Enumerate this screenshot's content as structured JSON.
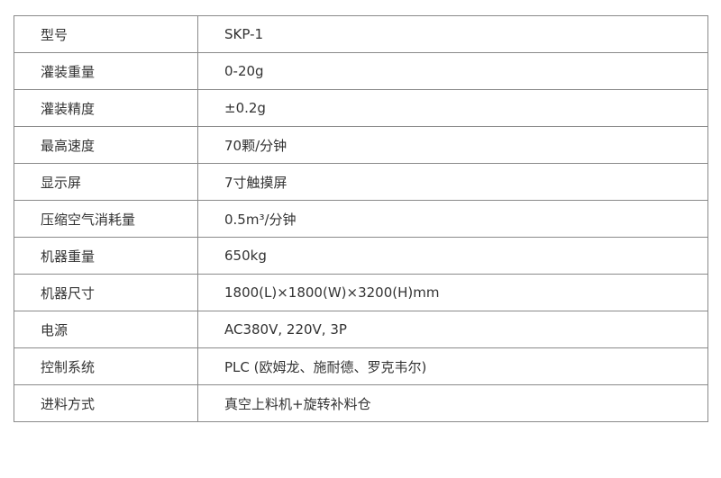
{
  "rows": [
    {
      "label": "型号",
      "value": "SKP-1"
    },
    {
      "label": "灌装重量",
      "value": "0-20g"
    },
    {
      "label": "灌装精度",
      "value": "±0.2g"
    },
    {
      "label": "最高速度",
      "value": "70颗/分钟"
    },
    {
      "label": "显示屏",
      "value": "7寸触摸屏"
    },
    {
      "label": "压缩空气消耗量",
      "value": "0.5m³/分钟"
    },
    {
      "label": "机器重量",
      "value": "650kg"
    },
    {
      "label": "机器尺寸",
      "value": "1800(L)×1800(W)×3200(H)mm"
    },
    {
      "label": "电源",
      "value": "AC380V, 220V, 3P"
    },
    {
      "label": "控制系统",
      "value": "PLC (欧姆龙、施耐德、罗克韦尔)"
    },
    {
      "label": "进料方式",
      "value": "真空上料机+旋转补料仓"
    }
  ]
}
